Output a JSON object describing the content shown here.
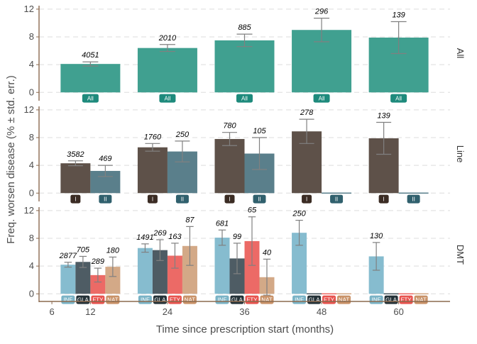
{
  "chart_data": {
    "type": "bar",
    "xlabel": "Time since prescription start (months)",
    "ylabel": "Freq. worsen disease (% ± std. err.)",
    "x_ticks": [
      6,
      12,
      24,
      36,
      48,
      60
    ],
    "xlim": [
      4,
      68
    ],
    "ylim": [
      -1.2,
      12.5
    ],
    "y_ticks": [
      0,
      4,
      8,
      12
    ],
    "grid": "horizontal dashed",
    "panels": [
      {
        "strip": "All",
        "series": [
          {
            "name": "All",
            "color": "#40a090",
            "x": [
              12,
              24,
              36,
              48,
              60
            ],
            "values": [
              4.1,
              6.4,
              7.5,
              9.0,
              7.9
            ],
            "err": [
              0.3,
              0.5,
              0.9,
              1.7,
              2.3
            ],
            "n": [
              "4051",
              "2010",
              "885",
              "296",
              "139"
            ]
          }
        ]
      },
      {
        "strip": "Line",
        "series": [
          {
            "name": "I",
            "color": "#5e5149",
            "x": [
              12,
              24,
              36,
              48,
              60
            ],
            "values": [
              4.3,
              6.6,
              7.8,
              8.9,
              7.9
            ],
            "err": [
              0.35,
              0.55,
              0.95,
              1.75,
              2.3
            ],
            "n": [
              "3582",
              "1760",
              "780",
              "278",
              "139"
            ]
          },
          {
            "name": "II",
            "color": "#5a7f8b",
            "x": [
              12,
              24,
              36,
              48,
              60
            ],
            "values": [
              3.2,
              6.0,
              5.7,
              0,
              0
            ],
            "err": [
              0.8,
              1.5,
              2.3,
              null,
              null
            ],
            "n": [
              "469",
              "250",
              "105",
              "",
              ""
            ]
          }
        ]
      },
      {
        "strip": "DMT",
        "series": [
          {
            "name": "INF",
            "color": "#86bccf",
            "x": [
              12,
              24,
              36,
              48,
              60
            ],
            "values": [
              4.2,
              6.6,
              8.1,
              8.8,
              5.4
            ],
            "err": [
              0.35,
              0.6,
              1.1,
              1.8,
              2.0
            ],
            "n": [
              "2877",
              "1491",
              "681",
              "250",
              "130"
            ]
          },
          {
            "name": "GLA",
            "color": "#4e5c64",
            "x": [
              12,
              24,
              36,
              48,
              60
            ],
            "values": [
              4.6,
              6.3,
              5.1,
              0,
              0
            ],
            "err": [
              0.8,
              1.5,
              2.2,
              null,
              null
            ],
            "n": [
              "705",
              "269",
              "99",
              "",
              ""
            ]
          },
          {
            "name": "FTY",
            "color": "#ec6a66",
            "x": [
              12,
              24,
              36,
              48,
              60
            ],
            "values": [
              2.7,
              5.5,
              7.6,
              0,
              0
            ],
            "err": [
              1.0,
              1.8,
              3.5,
              null,
              null
            ],
            "n": [
              "289",
              "163",
              "65",
              "",
              ""
            ]
          },
          {
            "name": "NAT",
            "color": "#d3a987",
            "x": [
              12,
              24,
              36,
              48,
              60
            ],
            "values": [
              3.9,
              6.9,
              2.4,
              0,
              0
            ],
            "err": [
              1.4,
              2.8,
              2.6,
              null,
              null
            ],
            "n": [
              "180",
              "87",
              "40",
              "",
              ""
            ]
          }
        ]
      }
    ]
  },
  "badge_colors": {
    "All": "#1e8a7c",
    "I": "#3b2c24",
    "II": "#30606d",
    "INF": "#7ab3c6",
    "GLA": "#243238",
    "FTY": "#e8534f",
    "NAT": "#c99268"
  }
}
